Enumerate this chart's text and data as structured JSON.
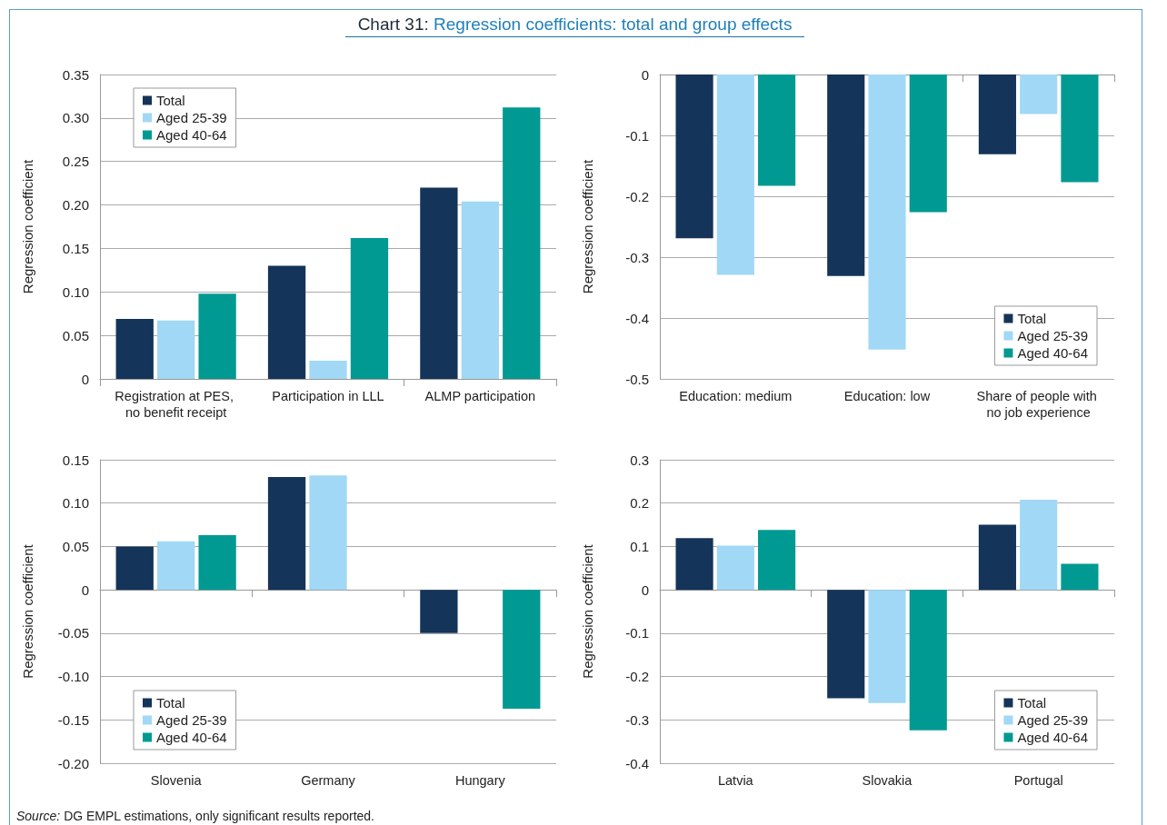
{
  "chart_data": [
    {
      "type": "bar",
      "title": "Chart 31: Regression coefficients: total and group effects",
      "ylabel": "Regression coefficient",
      "categories": [
        "Registration at PES, no benefit receipt",
        "Participation in LLL",
        "ALMP participation"
      ],
      "series": [
        {
          "name": "Total",
          "color": "#143459",
          "values": [
            0.069,
            0.13,
            0.22
          ]
        },
        {
          "name": "Aged 25-39",
          "color": "#a1d8f5",
          "values": [
            0.067,
            0.021,
            0.204
          ]
        },
        {
          "name": "Aged 40-64",
          "color": "#009a93",
          "values": [
            0.098,
            0.162,
            0.312
          ]
        }
      ],
      "ylim": [
        0,
        0.35
      ],
      "yticks": [
        0,
        0.05,
        {
          "value": 0.1,
          "label": "0.10"
        },
        0.15,
        {
          "value": 0.2,
          "label": "0.20"
        },
        0.25,
        {
          "value": 0.3,
          "label": "0.30"
        },
        0.35
      ],
      "grid": "y",
      "legend": "top left"
    },
    {
      "type": "bar",
      "ylabel": "Regression coefficient",
      "categories": [
        "Education: medium",
        "Education: low",
        "Share of people with no job experience"
      ],
      "series": [
        {
          "name": "Total",
          "color": "#143459",
          "values": [
            -0.269,
            -0.331,
            -0.131
          ]
        },
        {
          "name": "Aged 25-39",
          "color": "#a1d8f5",
          "values": [
            -0.329,
            -0.452,
            -0.065
          ]
        },
        {
          "name": "Aged 40-64",
          "color": "#009a93",
          "values": [
            -0.183,
            -0.226,
            -0.177
          ]
        }
      ],
      "ylim": [
        -0.5,
        0
      ],
      "yticks": [
        -0.5,
        -0.4,
        -0.3,
        -0.2,
        -0.1,
        0
      ],
      "grid": "y",
      "legend": "bottom right"
    },
    {
      "type": "bar",
      "ylabel": "Regression coefficient",
      "categories": [
        "Slovenia",
        "Germany",
        "Hungary"
      ],
      "series": [
        {
          "name": "Total",
          "color": "#143459",
          "values": [
            0.05,
            0.13,
            -0.05
          ]
        },
        {
          "name": "Aged 25-39",
          "color": "#a1d8f5",
          "values": [
            0.056,
            0.132,
            null
          ]
        },
        {
          "name": "Aged 40-64",
          "color": "#009a93",
          "values": [
            0.063,
            null,
            -0.137
          ]
        }
      ],
      "ylim": [
        -0.2,
        0.15
      ],
      "yticks": [
        {
          "value": -0.2,
          "label": "-0.20"
        },
        -0.15,
        {
          "value": -0.1,
          "label": "-0.10"
        },
        -0.05,
        0,
        0.05,
        {
          "value": 0.1,
          "label": "0.10"
        },
        0.15
      ],
      "grid": "y",
      "legend": "bottom left"
    },
    {
      "type": "bar",
      "ylabel": "Regression coefficient",
      "categories": [
        "Latvia",
        "Slovakia",
        "Portugal"
      ],
      "series": [
        {
          "name": "Total",
          "color": "#143459",
          "values": [
            0.119,
            -0.25,
            0.15
          ]
        },
        {
          "name": "Aged 25-39",
          "color": "#a1d8f5",
          "values": [
            0.102,
            -0.261,
            0.208
          ]
        },
        {
          "name": "Aged 40-64",
          "color": "#009a93",
          "values": [
            0.138,
            -0.324,
            0.06
          ]
        }
      ],
      "ylim": [
        -0.4,
        0.3
      ],
      "yticks": [
        -0.4,
        -0.3,
        -0.2,
        -0.1,
        0,
        0.1,
        0.2,
        0.3
      ],
      "grid": "y",
      "legend": "bottom right",
      "annotations": [
        "Source: DG EMPL estimations, only significant results reported."
      ]
    }
  ]
}
